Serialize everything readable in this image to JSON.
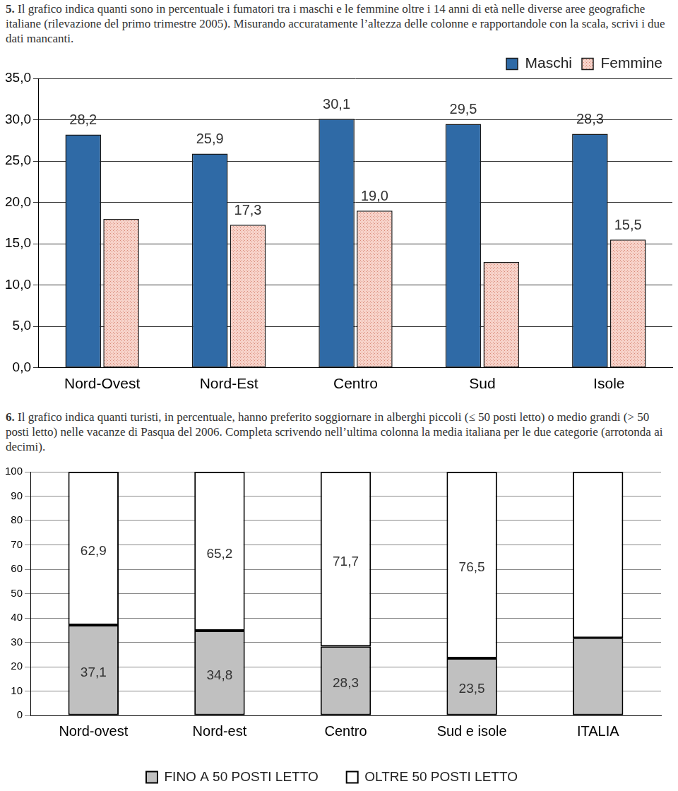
{
  "exercises": [
    {
      "number": "5.",
      "text": "Il grafico indica quanti sono in percentuale i fumatori tra i maschi e le femmine oltre i 14 anni di età nelle diverse aree geografiche italiane (rilevazione del primo trimestre 2005). Misurando accuratamente l’altezza delle colonne e rapportandole con la scala, scrivi i due dati mancanti."
    },
    {
      "number": "6.",
      "text": "Il grafico indica quanti turisti, in percentuale, hanno preferito soggiornare in alberghi piccoli (≤ 50 posti letto) o medio grandi (> 50 posti letto) nelle vacanze di Pasqua del 2006. Completa scrivendo nell’ultima colonna la media italiana per le due categorie (arrotonda ai decimi)."
    }
  ],
  "chart_data": [
    {
      "type": "bar",
      "categories": [
        "Nord-Ovest",
        "Nord-Est",
        "Centro",
        "Sud",
        "Isole"
      ],
      "series": [
        {
          "name": "Maschi",
          "color": "#2f6aa6",
          "values": [
            28.2,
            25.9,
            30.1,
            29.5,
            28.3
          ],
          "value_labels": [
            "28,2",
            "25,9",
            "30,1",
            "29,5",
            "28,3"
          ]
        },
        {
          "name": "Femmine",
          "color": "#f7d3ca",
          "values": [
            18.0,
            17.3,
            19.0,
            12.8,
            15.5
          ],
          "value_labels": [
            null,
            "17,3",
            "19,0",
            null,
            "15,5"
          ]
        }
      ],
      "ylim": [
        0,
        35
      ],
      "yticks": [
        {
          "value": 0,
          "label": "0,0"
        },
        {
          "value": 5,
          "label": "5,0"
        },
        {
          "value": 10,
          "label": "10,0"
        },
        {
          "value": 15,
          "label": "15,0"
        },
        {
          "value": 20,
          "label": "20,0"
        },
        {
          "value": 25,
          "label": "25,0"
        },
        {
          "value": 30,
          "label": "30,0"
        },
        {
          "value": 35,
          "label": "35,0"
        }
      ],
      "grid": true,
      "legend": "top-right",
      "data_labels": true
    },
    {
      "type": "bar",
      "categories": [
        "Nord-ovest",
        "Nord-est",
        "Centro",
        "Sud e isole",
        "ITALIA"
      ],
      "series": [
        {
          "name": "FINO A 50 POSTI LETTO",
          "color": "#c0c0c0",
          "values": [
            37.1,
            34.8,
            28.3,
            23.5,
            31.8
          ],
          "value_labels": [
            "37,1",
            "34,8",
            "28,3",
            "23,5",
            null
          ]
        },
        {
          "name": "OLTRE 50 POSTI LETTO",
          "color": "#ffffff",
          "values": [
            62.9,
            65.2,
            71.7,
            76.5,
            68.2
          ],
          "value_labels": [
            "62,9",
            "65,2",
            "71,7",
            "76,5",
            null
          ]
        }
      ],
      "ylim": [
        0,
        100
      ],
      "yticks": [
        0,
        10,
        20,
        30,
        40,
        50,
        60,
        70,
        80,
        90,
        100
      ],
      "grid": true,
      "stacked": true,
      "legend": "bottom",
      "data_labels": true
    }
  ]
}
